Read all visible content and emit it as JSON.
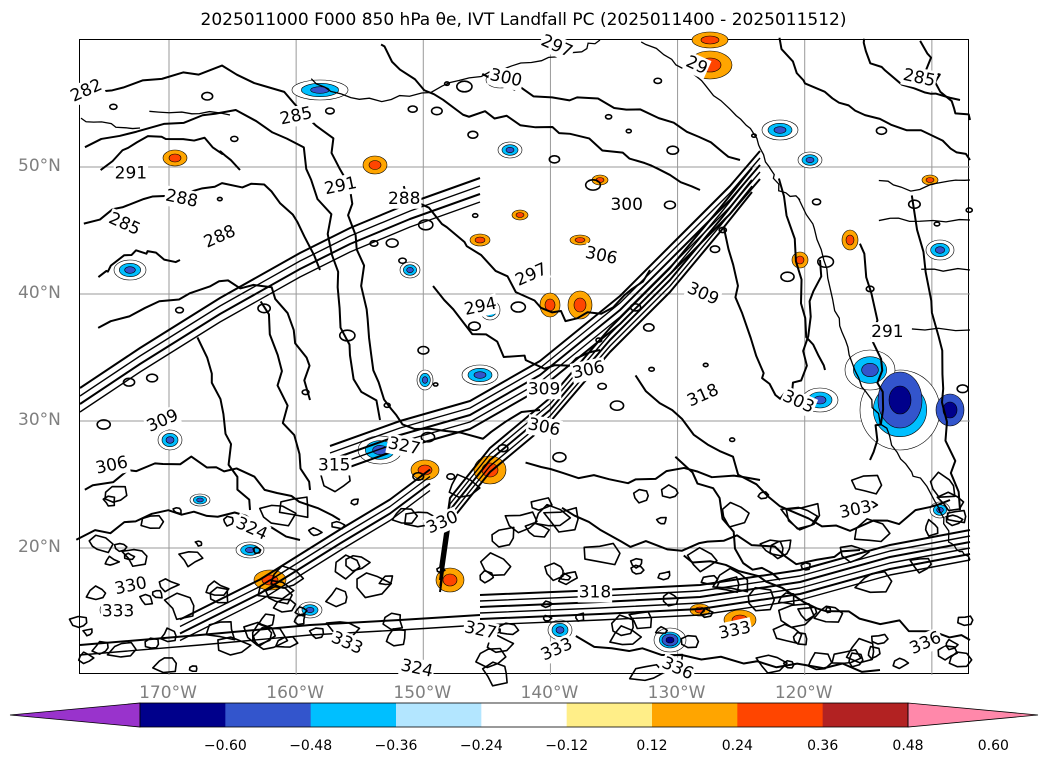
{
  "title": "2025011000 F000 850 hPa θe, IVT Landfall PC (2025011400 - 2025011512)",
  "map": {
    "lat_labels": [
      {
        "text": "50°N",
        "lat": 50
      },
      {
        "text": "40°N",
        "lat": 40
      },
      {
        "text": "30°N",
        "lat": 30
      },
      {
        "text": "20°N",
        "lat": 20
      }
    ],
    "lon_labels": [
      {
        "text": "170°W",
        "lon": -170
      },
      {
        "text": "160°W",
        "lon": -160
      },
      {
        "text": "150°W",
        "lon": -150
      },
      {
        "text": "140°W",
        "lon": -140
      },
      {
        "text": "130°W",
        "lon": -130
      },
      {
        "text": "120°W",
        "lon": -120
      }
    ],
    "lon_range": [
      -177,
      -107
    ],
    "lat_range": [
      10,
      60
    ],
    "contour_labels": [
      {
        "text": "282",
        "lon": -176.5,
        "lat": 56.0
      },
      {
        "text": "285",
        "lon": -160.0,
        "lat": 54.0
      },
      {
        "text": "291",
        "lon": -173.0,
        "lat": 49.5
      },
      {
        "text": "288",
        "lon": -169.0,
        "lat": 47.5
      },
      {
        "text": "285",
        "lon": -173.5,
        "lat": 45.5
      },
      {
        "text": "288",
        "lon": -166.0,
        "lat": 44.5
      },
      {
        "text": "291",
        "lon": -156.5,
        "lat": 48.5
      },
      {
        "text": "288",
        "lon": -151.5,
        "lat": 47.5
      },
      {
        "text": "300",
        "lon": -143.5,
        "lat": 57.0
      },
      {
        "text": "297",
        "lon": -139.5,
        "lat": 59.5
      },
      {
        "text": "297",
        "lon": -141.5,
        "lat": 41.5
      },
      {
        "text": "294",
        "lon": -145.5,
        "lat": 39.0
      },
      {
        "text": "300",
        "lon": -134.0,
        "lat": 47.0
      },
      {
        "text": "306",
        "lon": -136.0,
        "lat": 43.0
      },
      {
        "text": "309",
        "lon": -128.0,
        "lat": 40.0
      },
      {
        "text": "318",
        "lon": -128.0,
        "lat": 32.0
      },
      {
        "text": "306",
        "lon": -137.0,
        "lat": 34.0
      },
      {
        "text": "309",
        "lon": -140.5,
        "lat": 32.5
      },
      {
        "text": "306",
        "lon": -140.5,
        "lat": 29.5
      },
      {
        "text": "303",
        "lon": -120.5,
        "lat": 31.5
      },
      {
        "text": "309",
        "lon": -170.5,
        "lat": 30.0
      },
      {
        "text": "306",
        "lon": -174.5,
        "lat": 26.5
      },
      {
        "text": "315",
        "lon": -157.0,
        "lat": 26.5
      },
      {
        "text": "327",
        "lon": -151.5,
        "lat": 28.0
      },
      {
        "text": "324",
        "lon": -163.5,
        "lat": 21.5
      },
      {
        "text": "330",
        "lon": -148.5,
        "lat": 22.0
      },
      {
        "text": "330",
        "lon": -173.0,
        "lat": 17.0
      },
      {
        "text": "333",
        "lon": -174.0,
        "lat": 15.0
      },
      {
        "text": "327",
        "lon": -145.5,
        "lat": 13.5
      },
      {
        "text": "333",
        "lon": -156.0,
        "lat": 12.5
      },
      {
        "text": "333",
        "lon": -139.5,
        "lat": 12.0
      },
      {
        "text": "333",
        "lon": -125.5,
        "lat": 13.5
      },
      {
        "text": "318",
        "lon": -136.5,
        "lat": 16.5
      },
      {
        "text": "324",
        "lon": -150.5,
        "lat": 10.5
      },
      {
        "text": "336",
        "lon": -130.0,
        "lat": 10.5
      },
      {
        "text": "336",
        "lon": -110.5,
        "lat": 12.5
      },
      {
        "text": "303",
        "lon": -116.0,
        "lat": 23.0
      },
      {
        "text": "291",
        "lon": -113.5,
        "lat": 37.0
      },
      {
        "text": "285",
        "lon": -111.0,
        "lat": 57.0
      },
      {
        "text": "29",
        "lon": -128.5,
        "lat": 58.0
      }
    ]
  },
  "colorbar": {
    "tick_labels": [
      "−0.60",
      "−0.48",
      "−0.36",
      "−0.24",
      "−0.12",
      "0.12",
      "0.24",
      "0.36",
      "0.48",
      "0.60"
    ],
    "colors": [
      "#9933cc",
      "#00008b",
      "#3355cc",
      "#00bfff",
      "#b3e6ff",
      "#ffffff",
      "#ffee88",
      "#ffa500",
      "#ff4500",
      "#b22222",
      "#ff88aa"
    ]
  }
}
